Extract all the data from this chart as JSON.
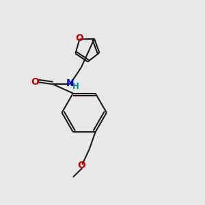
{
  "bg_color": "#e8e8e8",
  "bond_color": "#1a1a1a",
  "bond_width": 1.5,
  "atom_colors": {
    "O": "#cc0000",
    "N": "#0000cc",
    "H_on_N": "#008888",
    "C": "#1a1a1a"
  },
  "font_size_atom": 10,
  "font_size_H": 8.5
}
